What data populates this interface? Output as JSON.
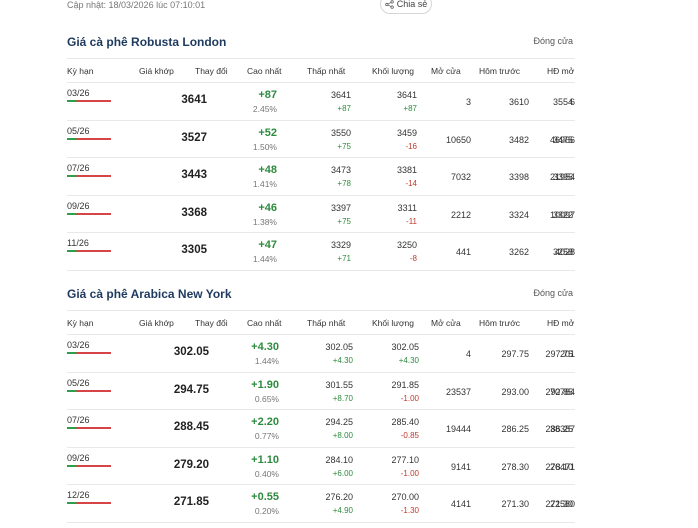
{
  "header": {
    "updated": "Cập nhật: 18/03/2026 lúc 07:10:01",
    "share_label": "Chia sẻ"
  },
  "colors": {
    "up": "#2e8b3e",
    "down": "#c0392b",
    "title": "#1e3a5f"
  },
  "robusta": {
    "title": "Giá cà phê Robusta London",
    "status": "Đóng cửa",
    "columns": [
      "Kỳ hạn",
      "Giá khớp",
      "Thay đổi",
      "Cao nhất",
      "Thấp nhất",
      "Khối lượng",
      "Mở cửa",
      "Hôm trước",
      "HĐ mở"
    ],
    "rows": [
      {
        "term": "03/26",
        "price": "3641",
        "change": "+87",
        "pct": "2.45%",
        "high": "3641",
        "high_chg": "+87",
        "low": "3641",
        "low_chg": "+87",
        "volume": "3",
        "open": "3610",
        "prev": "3554",
        "oi": "6"
      },
      {
        "term": "05/26",
        "price": "3527",
        "change": "+52",
        "pct": "1.50%",
        "high": "3550",
        "high_chg": "+75",
        "low": "3459",
        "low_chg": "-16",
        "volume": "10650",
        "open": "3482",
        "prev": "3475",
        "oi": "46966"
      },
      {
        "term": "07/26",
        "price": "3443",
        "change": "+48",
        "pct": "1.41%",
        "high": "3473",
        "high_chg": "+78",
        "low": "3381",
        "low_chg": "-14",
        "volume": "7032",
        "open": "3398",
        "prev": "3395",
        "oi": "21954"
      },
      {
        "term": "09/26",
        "price": "3368",
        "change": "+46",
        "pct": "1.38%",
        "high": "3397",
        "high_chg": "+75",
        "low": "3311",
        "low_chg": "-11",
        "volume": "2212",
        "open": "3324",
        "prev": "3322",
        "oi": "10097"
      },
      {
        "term": "11/26",
        "price": "3305",
        "change": "+47",
        "pct": "1.44%",
        "high": "3329",
        "high_chg": "+71",
        "low": "3250",
        "low_chg": "-8",
        "volume": "441",
        "open": "3262",
        "prev": "3258",
        "oi": "4028"
      }
    ]
  },
  "arabica": {
    "title": "Giá cà phê Arabica New York",
    "status": "Đóng cửa",
    "columns": [
      "Kỳ hạn",
      "Giá khớp",
      "Thay đổi",
      "Cao nhất",
      "Thấp nhất",
      "Khối lượng",
      "Mở cửa",
      "Hôm trước",
      "HĐ mở"
    ],
    "rows": [
      {
        "term": "03/26",
        "price": "302.05",
        "change": "+4.30",
        "pct": "1.44%",
        "high": "302.05",
        "high_chg": "+4.30",
        "low": "302.05",
        "low_chg": "+4.30",
        "volume": "4",
        "open": "297.75",
        "prev": "297.75",
        "oi": "201"
      },
      {
        "term": "05/26",
        "price": "294.75",
        "change": "+1.90",
        "pct": "0.65%",
        "high": "301.55",
        "high_chg": "+8.70",
        "low": "291.85",
        "low_chg": "-1.00",
        "volume": "23537",
        "open": "293.00",
        "prev": "292.85",
        "oi": "70784"
      },
      {
        "term": "07/26",
        "price": "288.45",
        "change": "+2.20",
        "pct": "0.77%",
        "high": "294.25",
        "high_chg": "+8.00",
        "low": "285.40",
        "low_chg": "-0.85",
        "volume": "19444",
        "open": "286.25",
        "prev": "286.25",
        "oi": "38387"
      },
      {
        "term": "09/26",
        "price": "279.20",
        "change": "+1.10",
        "pct": "0.40%",
        "high": "284.10",
        "high_chg": "+6.00",
        "low": "277.10",
        "low_chg": "-1.00",
        "volume": "9141",
        "open": "278.30",
        "prev": "278.10",
        "oi": "26471"
      },
      {
        "term": "12/26",
        "price": "271.85",
        "change": "+0.55",
        "pct": "0.20%",
        "high": "276.20",
        "high_chg": "+4.90",
        "low": "270.00",
        "low_chg": "-1.30",
        "volume": "4141",
        "open": "271.30",
        "prev": "271.30",
        "oi": "22580"
      }
    ]
  }
}
